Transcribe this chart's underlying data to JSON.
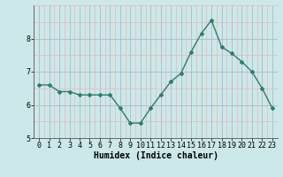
{
  "x": [
    0,
    1,
    2,
    3,
    4,
    5,
    6,
    7,
    8,
    9,
    10,
    11,
    12,
    13,
    14,
    15,
    16,
    17,
    18,
    19,
    20,
    21,
    22,
    23
  ],
  "y": [
    6.6,
    6.6,
    6.4,
    6.4,
    6.3,
    6.3,
    6.3,
    6.3,
    5.9,
    5.45,
    5.45,
    5.9,
    6.3,
    6.7,
    6.95,
    7.6,
    8.15,
    8.55,
    7.75,
    7.55,
    7.3,
    7.0,
    6.5,
    5.9
  ],
  "line_color": "#2e7d6e",
  "marker": "D",
  "marker_size": 2.0,
  "bg_color": "#cce8e8",
  "xlabel": "Humidex (Indice chaleur)",
  "ylim": [
    5,
    9
  ],
  "xlim": [
    -0.5,
    23.5
  ],
  "yticks": [
    5,
    6,
    7,
    8
  ],
  "xticks": [
    0,
    1,
    2,
    3,
    4,
    5,
    6,
    7,
    8,
    9,
    10,
    11,
    12,
    13,
    14,
    15,
    16,
    17,
    18,
    19,
    20,
    21,
    22,
    23
  ],
  "xlabel_fontsize": 7.0,
  "tick_fontsize": 6.0,
  "major_grid_color": "#b0b8c8",
  "minor_grid_color": "#e8b8b8",
  "line_width": 1.0
}
